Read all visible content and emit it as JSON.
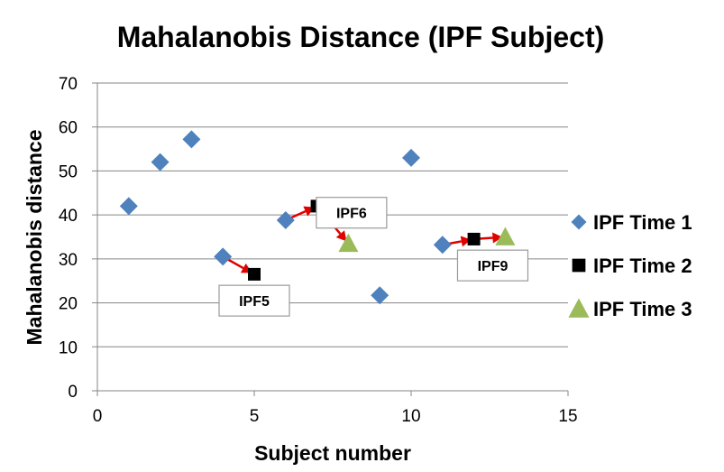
{
  "chart_data": {
    "type": "scatter",
    "title": "Mahalanobis Distance (IPF Subject)",
    "xlabel": "Subject number",
    "ylabel": "Mahalanobis distance",
    "xlim": [
      0,
      15
    ],
    "ylim": [
      0,
      70
    ],
    "x_ticks": [
      "0",
      "5",
      "10",
      "15"
    ],
    "y_ticks": [
      "0",
      "10",
      "20",
      "30",
      "40",
      "50",
      "60",
      "70"
    ],
    "grid": "horizontal",
    "legend_position": "right",
    "series": [
      {
        "name": "IPF Time 1",
        "marker": "diamond",
        "color": "#4F81BD",
        "points": [
          {
            "x": 1,
            "y": 42
          },
          {
            "x": 2,
            "y": 52
          },
          {
            "x": 3,
            "y": 57.2
          },
          {
            "x": 4,
            "y": 30.5
          },
          {
            "x": 6,
            "y": 38.8
          },
          {
            "x": 9,
            "y": 21.7
          },
          {
            "x": 10,
            "y": 53
          },
          {
            "x": 11,
            "y": 33.2
          }
        ]
      },
      {
        "name": "IPF Time 2",
        "marker": "square",
        "color": "#000000",
        "points": [
          {
            "x": 5,
            "y": 26.5
          },
          {
            "x": 7,
            "y": 42
          },
          {
            "x": 12,
            "y": 34.5
          }
        ]
      },
      {
        "name": "IPF Time 3",
        "marker": "triangle",
        "color": "#9BBB59",
        "points": [
          {
            "x": 8,
            "y": 33.5
          },
          {
            "x": 13,
            "y": 35
          }
        ]
      }
    ],
    "arrows": [
      {
        "from": {
          "x": 4,
          "y": 30.5
        },
        "to": {
          "x": 5,
          "y": 26.5
        },
        "color": "#E00000"
      },
      {
        "from": {
          "x": 6,
          "y": 38.8
        },
        "to": {
          "x": 7,
          "y": 42
        },
        "color": "#E00000"
      },
      {
        "from": {
          "x": 7,
          "y": 42
        },
        "to": {
          "x": 8,
          "y": 33.5
        },
        "color": "#E00000"
      },
      {
        "from": {
          "x": 11,
          "y": 33.2
        },
        "to": {
          "x": 12,
          "y": 34.5
        },
        "color": "#E00000"
      },
      {
        "from": {
          "x": 12,
          "y": 34.5
        },
        "to": {
          "x": 13,
          "y": 35
        },
        "color": "#E00000"
      }
    ],
    "annotations": [
      {
        "text": "IPF5",
        "x": 5,
        "y": 20.5
      },
      {
        "text": "IPF6",
        "x": 8.1,
        "y": 40.5
      },
      {
        "text": "IPF9",
        "x": 12.6,
        "y": 28.5
      }
    ]
  }
}
